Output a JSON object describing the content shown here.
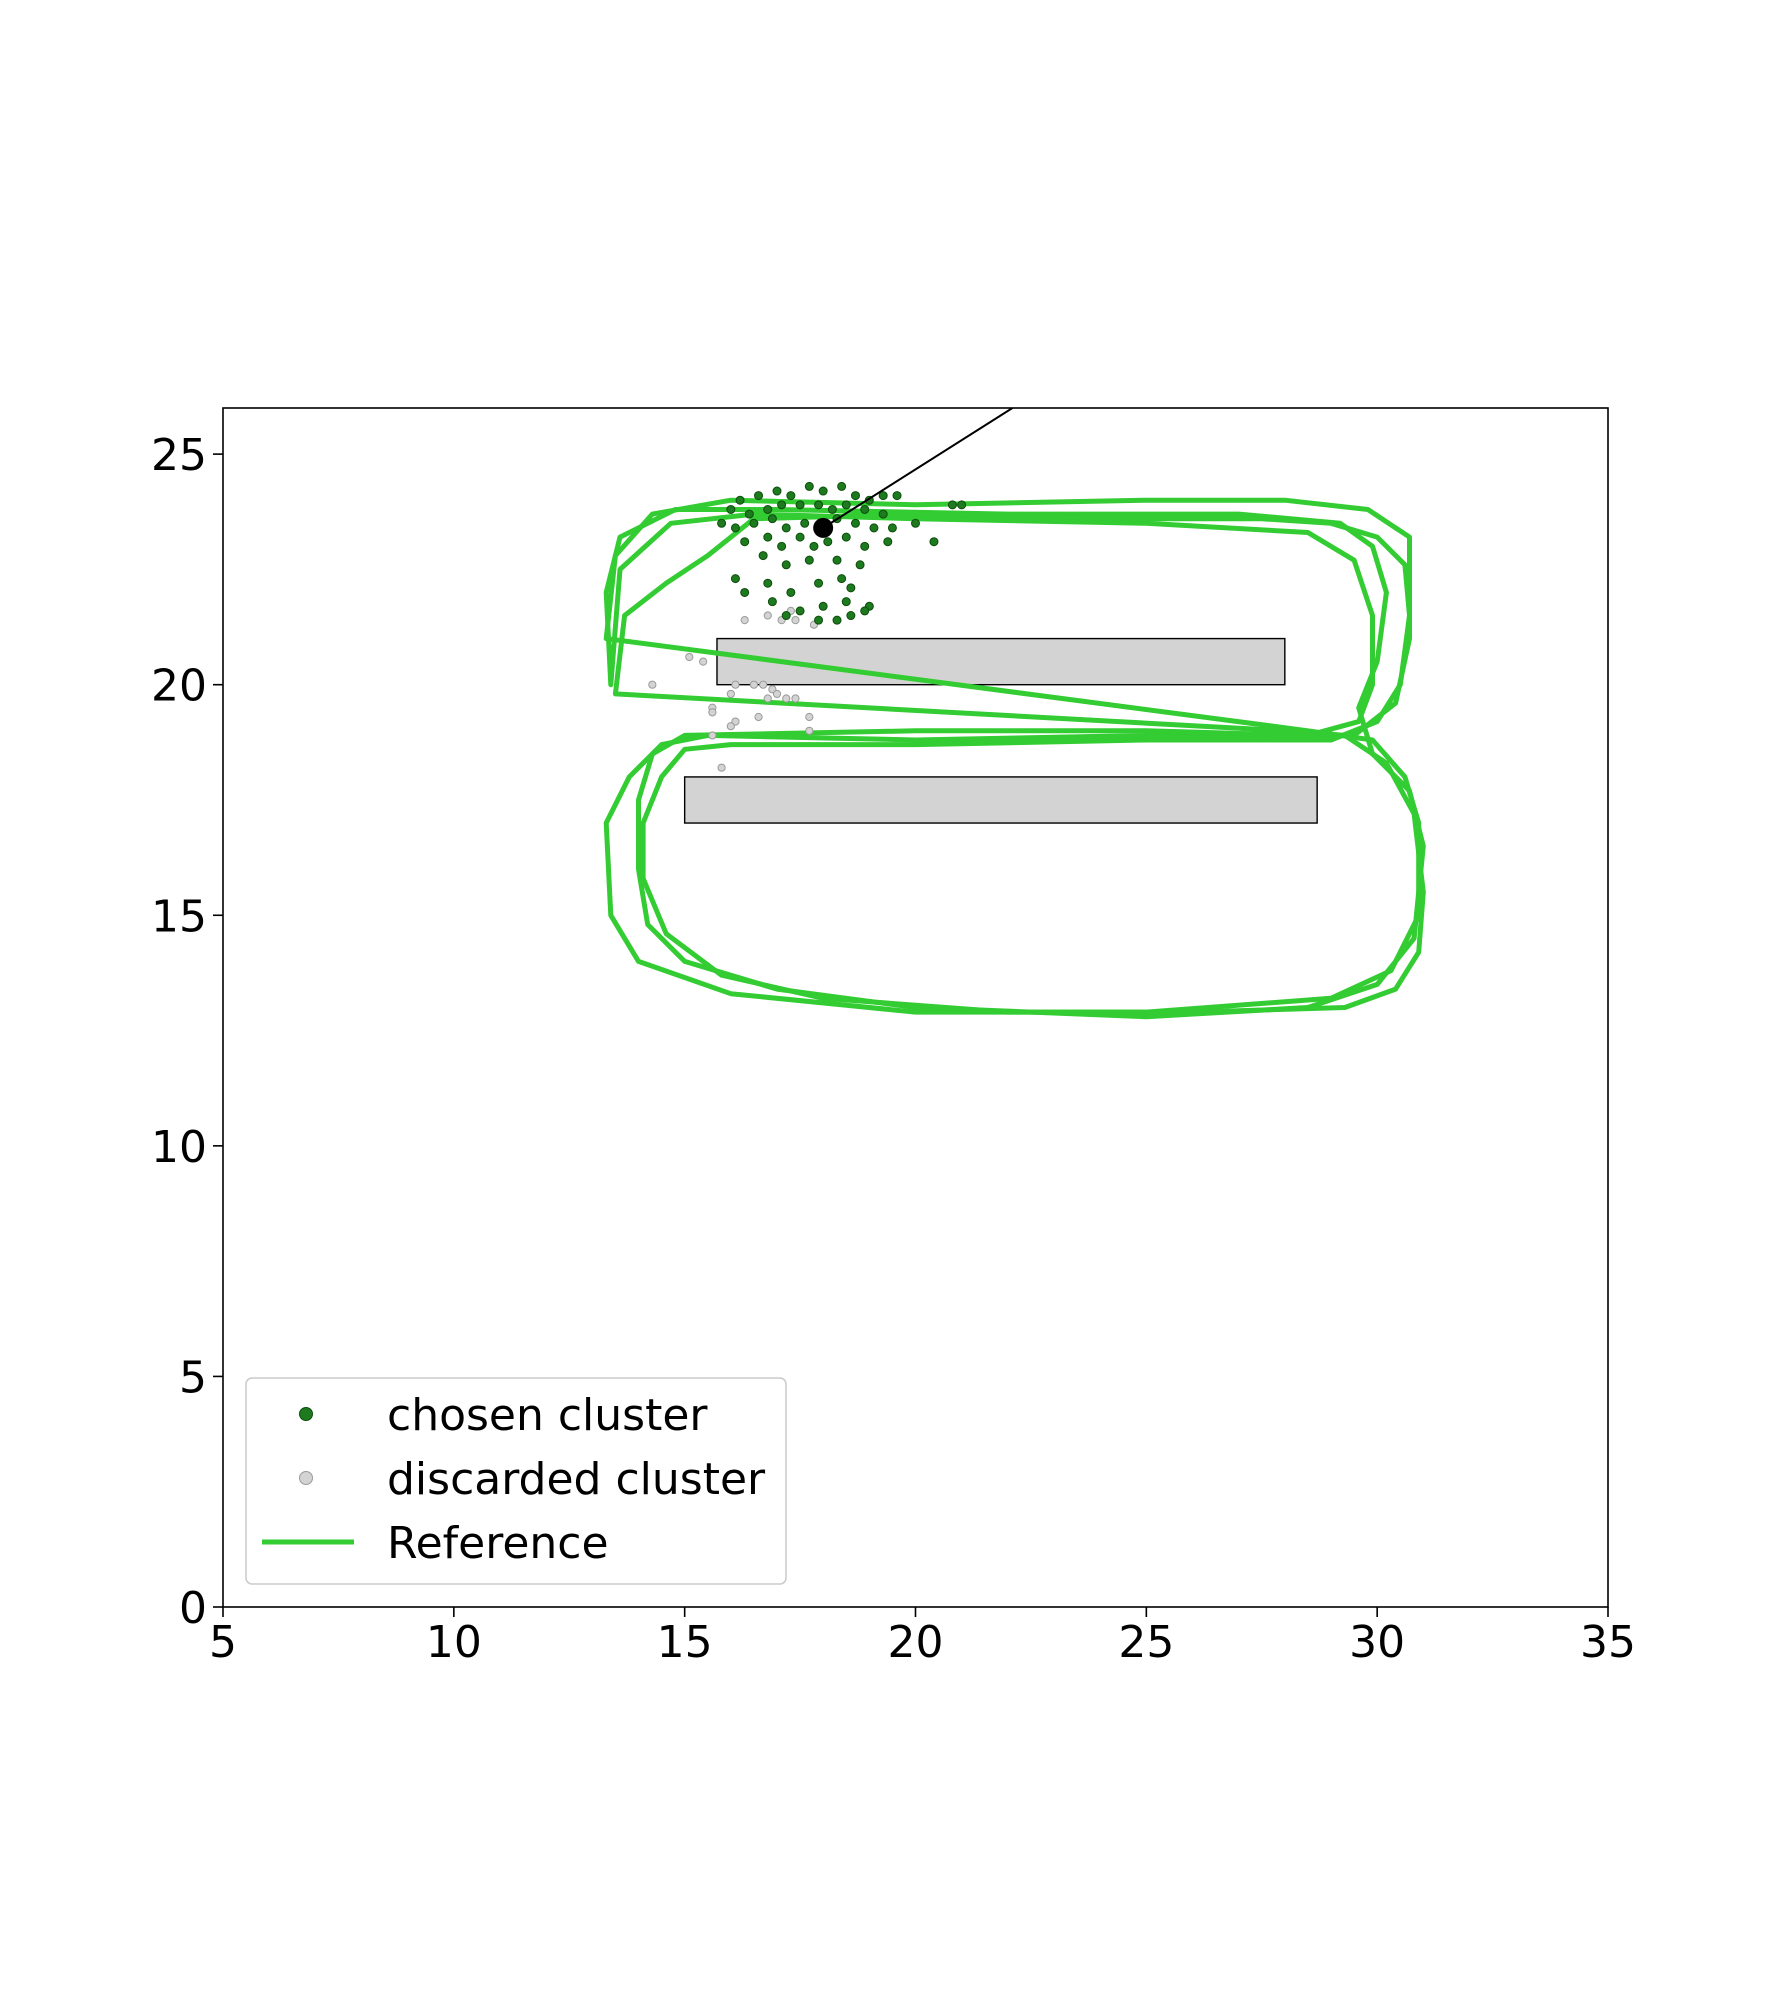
{
  "chart_data": {
    "type": "scatter",
    "title": "",
    "xlabel": "",
    "ylabel": "",
    "xlim": [
      5,
      35
    ],
    "ylim": [
      0,
      26
    ],
    "x_ticks": [
      5,
      10,
      15,
      20,
      25,
      30,
      35
    ],
    "y_ticks": [
      0,
      5,
      10,
      15,
      20,
      25
    ],
    "grid": false,
    "legend_placement": "lower-left",
    "colors": {
      "chosen": "#1e7a1e",
      "chosen_edge": "#0b4d0b",
      "discarded": "#d3d3d3",
      "discarded_edge": "#9a9a9a",
      "reference": "#33cc33",
      "obstacle": "#d3d3d3",
      "robot": "#000000"
    },
    "legend": [
      {
        "key": "chosen",
        "label": "chosen cluster",
        "marker": "dot"
      },
      {
        "key": "discarded",
        "label": "discarded cluster",
        "marker": "dot"
      },
      {
        "key": "reference",
        "label": "Reference",
        "marker": "line"
      }
    ],
    "obstacles": [
      {
        "x0": 15.7,
        "x1": 28.0,
        "y0": 20.0,
        "y1": 21.0
      },
      {
        "x0": 15.0,
        "x1": 28.7,
        "y0": 17.0,
        "y1": 18.0
      }
    ],
    "robot": {
      "x": 18.0,
      "y": 23.4
    },
    "heading_line": [
      [
        18.0,
        23.4
      ],
      [
        22.1,
        26.0
      ]
    ],
    "reference_paths": [
      [
        [
          13.3,
          21.0
        ],
        [
          13.5,
          22.8
        ],
        [
          14.3,
          23.7
        ],
        [
          16.0,
          24.0
        ],
        [
          20.0,
          23.9
        ],
        [
          25.0,
          24.0
        ],
        [
          28.0,
          24.0
        ],
        [
          29.8,
          23.8
        ],
        [
          30.7,
          23.2
        ],
        [
          30.7,
          21.0
        ],
        [
          30.4,
          19.6
        ],
        [
          29.5,
          18.9
        ],
        [
          25.0,
          18.9
        ],
        [
          20.0,
          18.8
        ],
        [
          15.5,
          18.9
        ],
        [
          14.5,
          18.7
        ],
        [
          13.8,
          18.0
        ],
        [
          13.3,
          17.0
        ],
        [
          13.4,
          15.0
        ],
        [
          14.0,
          14.0
        ],
        [
          16.0,
          13.3
        ],
        [
          20.0,
          12.9
        ],
        [
          25.0,
          12.9
        ],
        [
          29.0,
          13.2
        ],
        [
          30.3,
          13.8
        ],
        [
          30.9,
          15.0
        ],
        [
          30.9,
          17.0
        ],
        [
          30.6,
          18.0
        ],
        [
          29.9,
          18.8
        ],
        [
          28.5,
          19.0
        ]
      ],
      [
        [
          13.4,
          20.0
        ],
        [
          13.6,
          22.5
        ],
        [
          14.7,
          23.5
        ],
        [
          16.5,
          23.7
        ],
        [
          20.0,
          23.6
        ],
        [
          25.0,
          23.5
        ],
        [
          28.5,
          23.3
        ],
        [
          29.5,
          22.7
        ],
        [
          29.9,
          21.5
        ],
        [
          29.9,
          20.0
        ],
        [
          29.6,
          19.2
        ],
        [
          28.5,
          18.9
        ],
        [
          25.0,
          19.0
        ],
        [
          20.0,
          19.0
        ],
        [
          15.0,
          18.9
        ],
        [
          14.3,
          18.5
        ],
        [
          14.0,
          17.5
        ],
        [
          14.0,
          16.0
        ],
        [
          14.2,
          14.8
        ],
        [
          15.0,
          14.0
        ],
        [
          17.0,
          13.4
        ],
        [
          20.0,
          13.0
        ],
        [
          25.0,
          12.8
        ],
        [
          28.5,
          13.0
        ],
        [
          30.0,
          13.5
        ],
        [
          30.8,
          14.5
        ],
        [
          31.0,
          16.5
        ],
        [
          30.7,
          17.7
        ],
        [
          29.9,
          18.5
        ],
        [
          29.6,
          19.5
        ],
        [
          30.0,
          20.5
        ],
        [
          30.2,
          22.0
        ],
        [
          29.9,
          23.0
        ],
        [
          29.2,
          23.5
        ],
        [
          27.0,
          23.7
        ],
        [
          22.0,
          23.7
        ],
        [
          17.0,
          23.8
        ],
        [
          14.8,
          23.8
        ],
        [
          13.6,
          23.2
        ],
        [
          13.3,
          22.0
        ]
      ],
      [
        [
          13.5,
          19.8
        ],
        [
          13.7,
          21.5
        ],
        [
          14.6,
          22.2
        ],
        [
          15.5,
          22.8
        ],
        [
          16.5,
          23.6
        ],
        [
          20.0,
          23.7
        ],
        [
          25.0,
          23.6
        ],
        [
          27.5,
          23.6
        ],
        [
          29.0,
          23.5
        ],
        [
          30.0,
          23.2
        ],
        [
          30.6,
          22.6
        ],
        [
          30.7,
          21.5
        ],
        [
          30.5,
          20.0
        ],
        [
          30.0,
          19.2
        ],
        [
          29.0,
          18.8
        ],
        [
          25.0,
          18.8
        ],
        [
          20.0,
          18.7
        ],
        [
          16.0,
          18.7
        ],
        [
          15.0,
          18.6
        ],
        [
          14.5,
          18.0
        ],
        [
          14.1,
          17.0
        ],
        [
          14.1,
          15.8
        ],
        [
          14.6,
          14.6
        ],
        [
          15.8,
          13.7
        ],
        [
          18.0,
          13.2
        ],
        [
          22.0,
          12.9
        ],
        [
          26.0,
          12.9
        ],
        [
          29.3,
          13.0
        ],
        [
          30.4,
          13.4
        ],
        [
          30.9,
          14.2
        ],
        [
          31.0,
          15.5
        ],
        [
          30.8,
          17.2
        ],
        [
          30.2,
          18.3
        ],
        [
          29.3,
          18.9
        ],
        [
          28.0,
          19.0
        ]
      ]
    ],
    "chosen_points": [
      [
        16.2,
        24.0
      ],
      [
        16.6,
        24.1
      ],
      [
        17.0,
        24.2
      ],
      [
        17.3,
        24.1
      ],
      [
        17.7,
        24.3
      ],
      [
        18.0,
        24.2
      ],
      [
        18.4,
        24.3
      ],
      [
        18.7,
        24.1
      ],
      [
        19.0,
        24.0
      ],
      [
        19.3,
        24.1
      ],
      [
        19.6,
        24.1
      ],
      [
        16.0,
        23.8
      ],
      [
        16.4,
        23.7
      ],
      [
        16.8,
        23.8
      ],
      [
        17.1,
        23.9
      ],
      [
        17.5,
        23.9
      ],
      [
        17.9,
        23.9
      ],
      [
        18.2,
        23.8
      ],
      [
        18.5,
        23.9
      ],
      [
        18.9,
        23.8
      ],
      [
        19.3,
        23.7
      ],
      [
        15.8,
        23.5
      ],
      [
        16.1,
        23.4
      ],
      [
        16.5,
        23.5
      ],
      [
        16.9,
        23.6
      ],
      [
        17.2,
        23.4
      ],
      [
        17.6,
        23.5
      ],
      [
        18.3,
        23.6
      ],
      [
        18.7,
        23.5
      ],
      [
        19.1,
        23.4
      ],
      [
        19.5,
        23.4
      ],
      [
        20.0,
        23.5
      ],
      [
        20.8,
        23.9
      ],
      [
        21.0,
        23.9
      ],
      [
        16.3,
        23.1
      ],
      [
        16.8,
        23.2
      ],
      [
        17.1,
        23.0
      ],
      [
        17.5,
        23.2
      ],
      [
        17.8,
        23.0
      ],
      [
        18.1,
        23.1
      ],
      [
        18.5,
        23.2
      ],
      [
        18.9,
        23.0
      ],
      [
        19.4,
        23.1
      ],
      [
        20.4,
        23.1
      ],
      [
        16.7,
        22.8
      ],
      [
        17.2,
        22.6
      ],
      [
        17.7,
        22.7
      ],
      [
        18.3,
        22.7
      ],
      [
        18.8,
        22.6
      ],
      [
        16.1,
        22.3
      ],
      [
        16.8,
        22.2
      ],
      [
        17.3,
        22.0
      ],
      [
        17.9,
        22.2
      ],
      [
        18.4,
        22.3
      ],
      [
        18.6,
        22.1
      ],
      [
        16.3,
        22.0
      ],
      [
        16.9,
        21.8
      ],
      [
        17.5,
        21.6
      ],
      [
        18.0,
        21.7
      ],
      [
        18.5,
        21.8
      ],
      [
        19.0,
        21.7
      ],
      [
        17.2,
        21.5
      ],
      [
        17.9,
        21.4
      ],
      [
        18.6,
        21.5
      ],
      [
        18.3,
        21.4
      ],
      [
        18.9,
        21.6
      ]
    ],
    "discarded_points": [
      [
        14.3,
        20.0
      ],
      [
        15.1,
        20.6
      ],
      [
        15.4,
        20.5
      ],
      [
        16.1,
        20.0
      ],
      [
        16.5,
        20.0
      ],
      [
        16.7,
        20.0
      ],
      [
        16.9,
        19.9
      ],
      [
        17.0,
        19.8
      ],
      [
        17.2,
        19.7
      ],
      [
        17.4,
        19.7
      ],
      [
        16.8,
        19.7
      ],
      [
        16.0,
        19.8
      ],
      [
        15.6,
        19.5
      ],
      [
        15.6,
        19.4
      ],
      [
        16.1,
        19.2
      ],
      [
        16.0,
        19.1
      ],
      [
        16.6,
        19.3
      ],
      [
        17.7,
        19.3
      ],
      [
        17.7,
        19.0
      ],
      [
        15.6,
        18.9
      ],
      [
        15.8,
        18.2
      ],
      [
        16.3,
        21.4
      ],
      [
        16.8,
        21.5
      ],
      [
        17.1,
        21.4
      ],
      [
        17.4,
        21.4
      ],
      [
        17.8,
        21.3
      ],
      [
        17.3,
        21.6
      ]
    ]
  }
}
